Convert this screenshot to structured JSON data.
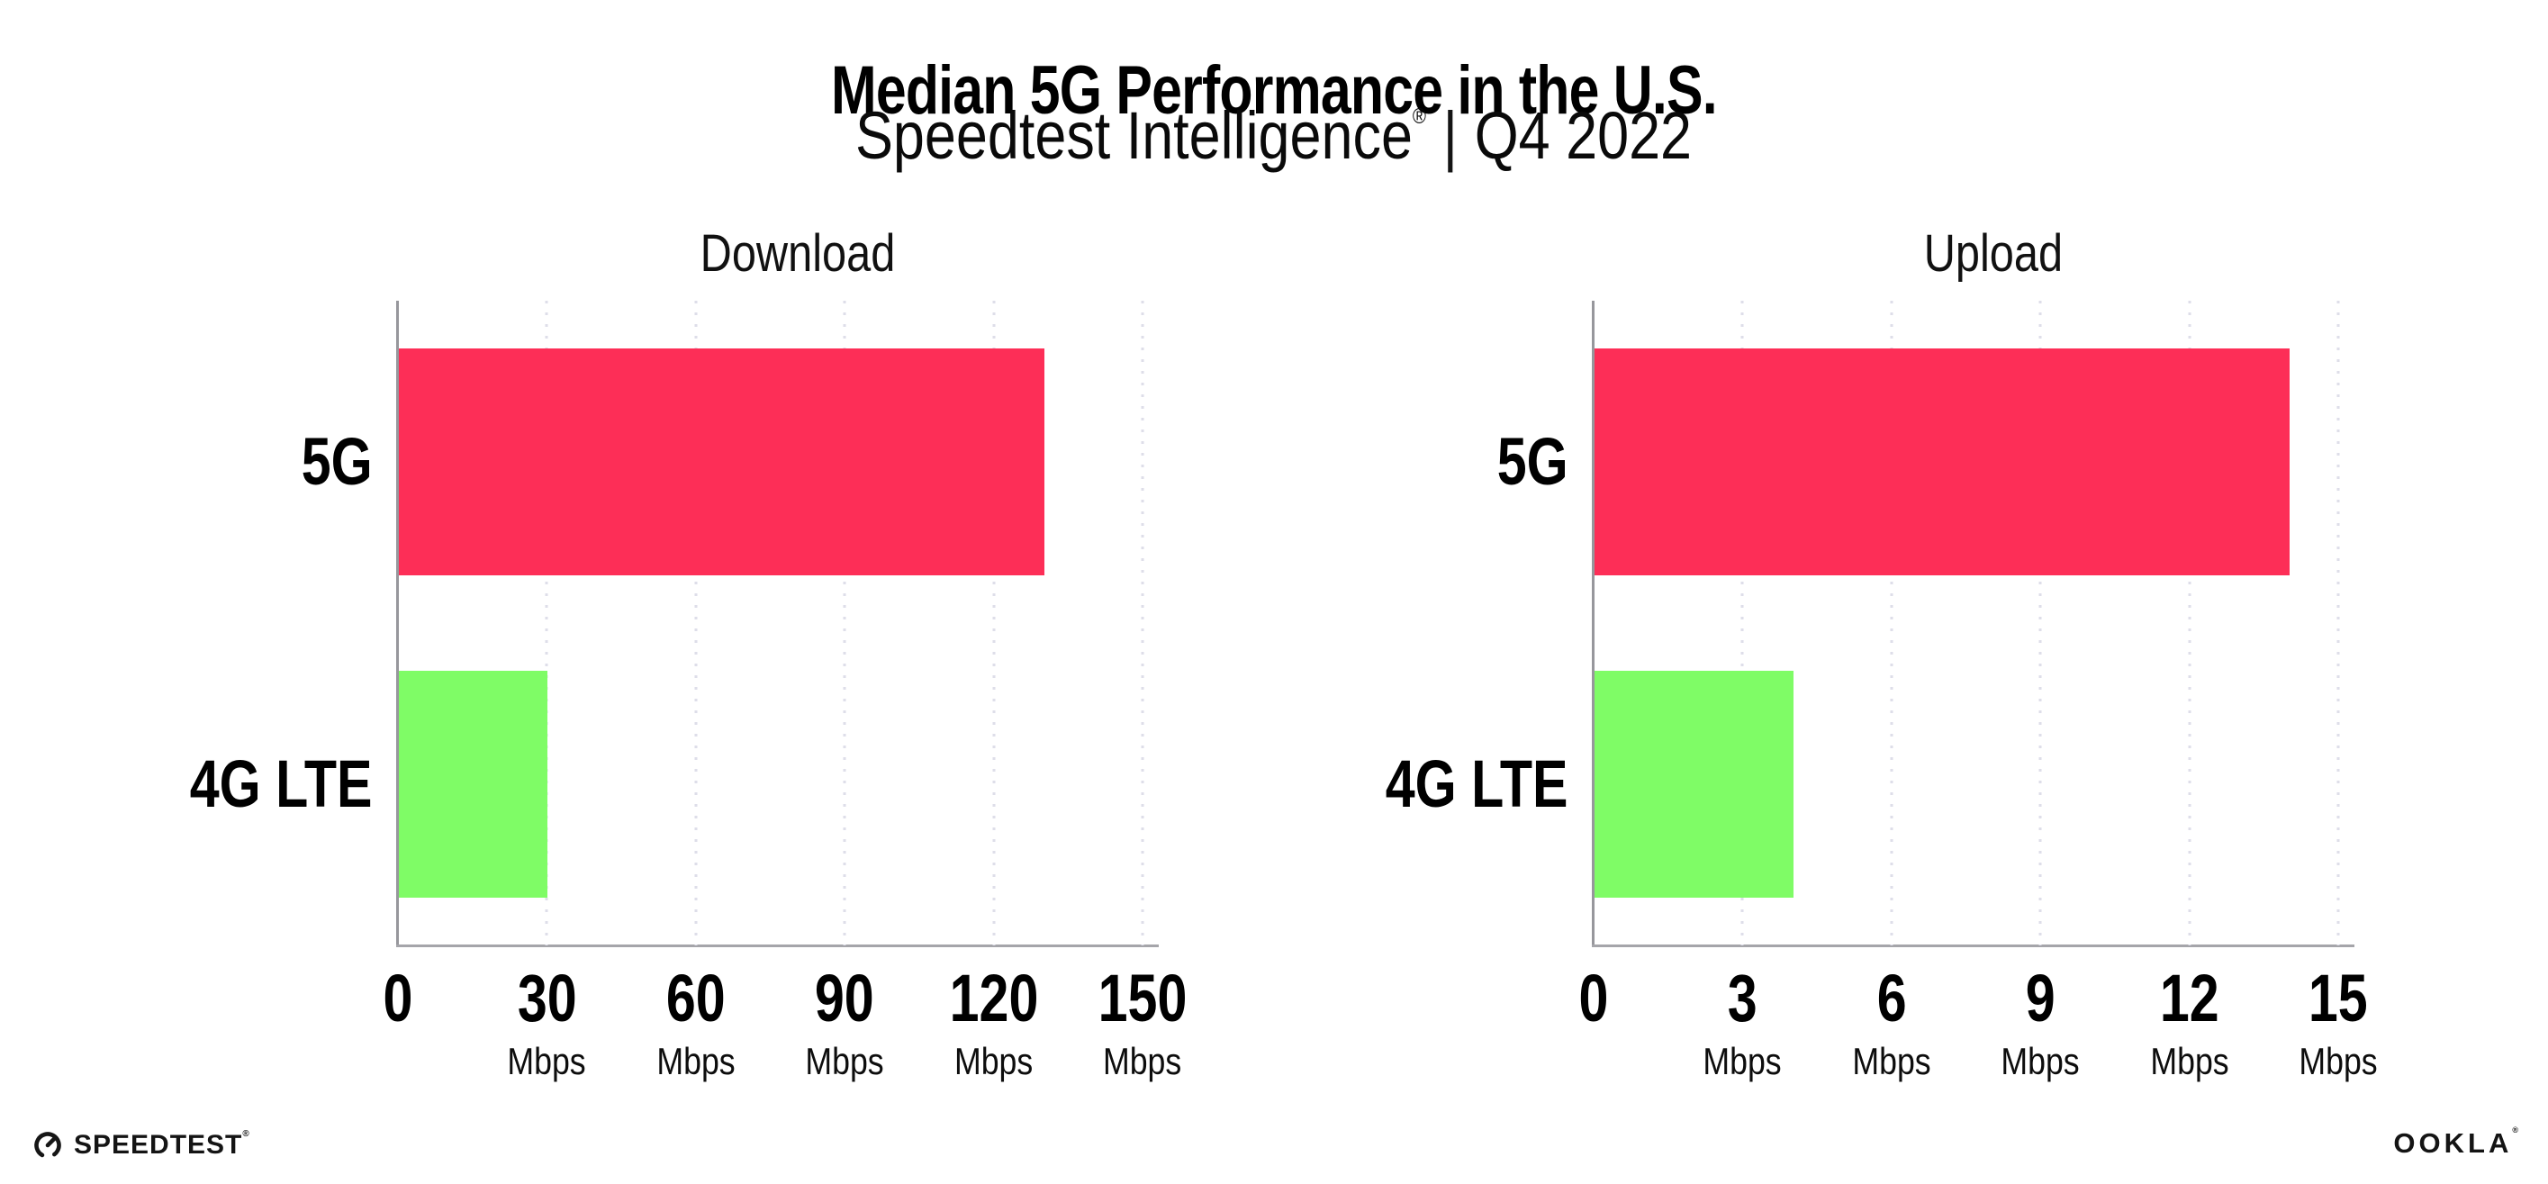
{
  "header": {
    "title": "Median 5G Performance in the U.S.",
    "subtitle_brand": "Speedtest Intelligence",
    "subtitle_reg": "®",
    "subtitle_sep": "|",
    "subtitle_period": "Q4 2022"
  },
  "footer": {
    "speedtest_label": "SPEEDTEST",
    "speedtest_reg": "®",
    "ookla_label": "OOKLA",
    "ookla_reg": "®"
  },
  "colors": {
    "bar_5g": "#FD2E57",
    "bar_4g_lte": "#7FFC66",
    "gridline": "#DEDEE9",
    "axis": "#A0A0A5"
  },
  "chart_data": [
    {
      "type": "bar",
      "orientation": "horizontal",
      "title": "Download",
      "categories": [
        "5G",
        "4G LTE"
      ],
      "values": [
        130,
        30
      ],
      "unit": "Mbps",
      "xlim": [
        0,
        150
      ],
      "ticks": [
        0,
        30,
        60,
        90,
        120,
        150
      ],
      "grid": "vertical-dotted",
      "bar_colors": [
        "#FD2E57",
        "#7FFC66"
      ]
    },
    {
      "type": "bar",
      "orientation": "horizontal",
      "title": "Upload",
      "categories": [
        "5G",
        "4G LTE"
      ],
      "values": [
        14,
        4
      ],
      "unit": "Mbps",
      "xlim": [
        0,
        15
      ],
      "ticks": [
        0,
        3,
        6,
        9,
        12,
        15
      ],
      "grid": "vertical-dotted",
      "bar_colors": [
        "#FD2E57",
        "#7FFC66"
      ]
    }
  ]
}
